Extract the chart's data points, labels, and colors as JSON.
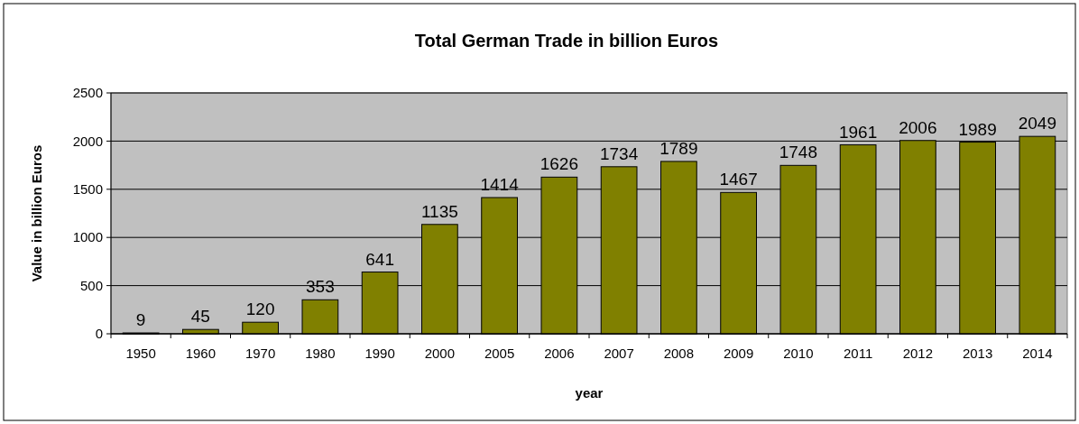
{
  "chart_data": {
    "type": "bar",
    "title": "Total German Trade in billion Euros",
    "xlabel": "year",
    "ylabel": "Value in billion Euros",
    "categories": [
      "1950",
      "1960",
      "1970",
      "1980",
      "1990",
      "2000",
      "2005",
      "2006",
      "2007",
      "2008",
      "2009",
      "2010",
      "2011",
      "2012",
      "2013",
      "2014"
    ],
    "values": [
      9,
      45,
      120,
      353,
      641,
      1135,
      1414,
      1626,
      1734,
      1789,
      1467,
      1748,
      1961,
      2006,
      1989,
      2049
    ],
    "color": "#808000",
    "ylim": [
      0,
      2500
    ],
    "yticks": [
      0,
      500,
      1000,
      1500,
      2000,
      2500
    ],
    "grid": "y",
    "data_labels": true
  }
}
